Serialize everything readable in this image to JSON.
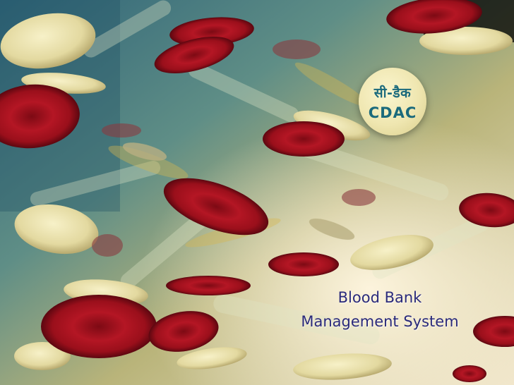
{
  "logo": {
    "hindi_text": "सी-डैक",
    "english_text": "CDAC"
  },
  "title": {
    "line1": "Blood Bank",
    "line2": "Management System"
  },
  "colors": {
    "title_text": "#2a2a7a",
    "logo_text": "#1b6a7c",
    "red_cell": "#a0101c",
    "platelet": "#e8e1a6"
  }
}
